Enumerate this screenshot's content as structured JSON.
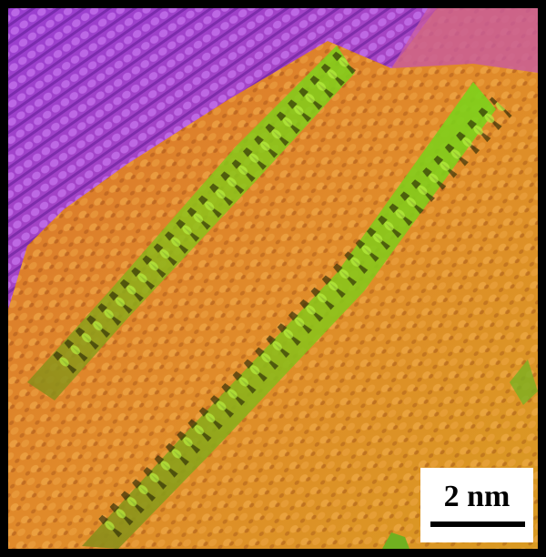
{
  "scale_bar": {
    "label": "2 nm"
  }
}
